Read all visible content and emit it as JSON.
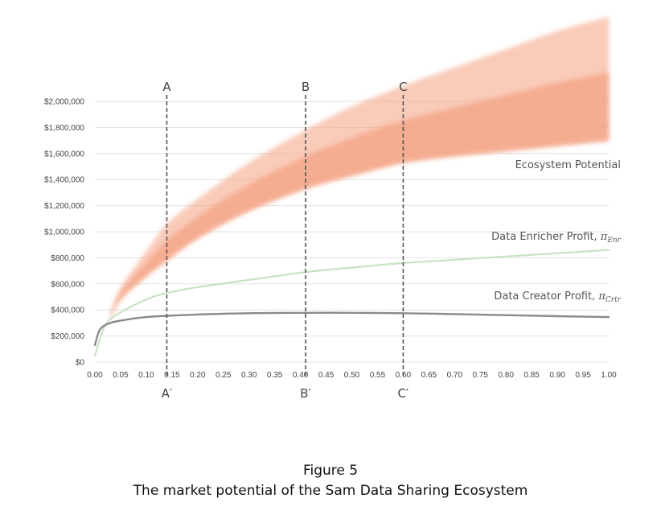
{
  "caption": {
    "figure_number": "Figure 5",
    "figure_title": "The market potential  of the Sam Data Sharing Ecosystem"
  },
  "colors": {
    "ecosystem_band": "#f4a080",
    "enricher_line": "#c8e2c4",
    "creator_line": "#8a8a8a",
    "grid": "#e2e2e2",
    "marker_line": "#555555"
  },
  "chart_data": {
    "type": "line",
    "xlim": [
      0,
      1
    ],
    "ylim": [
      0,
      2000000
    ],
    "grid": true,
    "x_ticks": [
      "0.00",
      "0.05",
      "0.10",
      "0.15",
      "0.20",
      "0.25",
      "0.30",
      "0.35",
      "0.40",
      "0.45",
      "0.50",
      "0.55",
      "0.60",
      "0.65",
      "0.70",
      "0.75",
      "0.80",
      "0.85",
      "0.90",
      "0.95",
      "1.00"
    ],
    "y_ticks": [
      {
        "value": 0,
        "label": "$0"
      },
      {
        "value": 200000,
        "label": "$200,000"
      },
      {
        "value": 400000,
        "label": "$400,000"
      },
      {
        "value": 600000,
        "label": "$600,000"
      },
      {
        "value": 800000,
        "label": "$800,000"
      },
      {
        "value": 1000000,
        "label": "$1,000,000"
      },
      {
        "value": 1200000,
        "label": "$1,200,000"
      },
      {
        "value": 1400000,
        "label": "$1,400,000"
      },
      {
        "value": 1600000,
        "label": "$1,600,000"
      },
      {
        "value": 1800000,
        "label": "$1,800,000"
      },
      {
        "value": 2000000,
        "label": "$2,000,000"
      }
    ],
    "markers": [
      {
        "x": 0.14,
        "top_label": "A",
        "bottom_label": "A′"
      },
      {
        "x": 0.41,
        "top_label": "B",
        "bottom_label": "B′"
      },
      {
        "x": 0.6,
        "top_label": "C",
        "bottom_label": "C′"
      }
    ],
    "series": [
      {
        "name": "Ecosystem Potential",
        "kind": "band",
        "x": [
          0.03,
          0.05,
          0.1,
          0.14,
          0.2,
          0.3,
          0.41,
          0.5,
          0.6,
          0.7,
          0.8,
          0.9,
          1.0
        ],
        "lower": [
          330000,
          480000,
          660000,
          780000,
          950000,
          1160000,
          1330000,
          1430000,
          1530000,
          1580000,
          1620000,
          1660000,
          1700000
        ],
        "upper": [
          370000,
          570000,
          850000,
          1060000,
          1250000,
          1530000,
          1780000,
          1960000,
          2120000,
          2260000,
          2400000,
          2540000,
          2650000
        ]
      },
      {
        "name": "Data Enricher Profit, ",
        "symbol": "π",
        "subscript": "Enr",
        "kind": "line",
        "x": [
          0.0,
          0.02,
          0.05,
          0.1,
          0.14,
          0.2,
          0.3,
          0.41,
          0.5,
          0.6,
          0.7,
          0.8,
          0.9,
          1.0
        ],
        "y": [
          50000,
          280000,
          380000,
          480000,
          530000,
          575000,
          630000,
          690000,
          725000,
          760000,
          785000,
          810000,
          835000,
          860000
        ]
      },
      {
        "name": "Data Creator Profit, ",
        "symbol": "π",
        "subscript": "Crtr",
        "kind": "line",
        "x": [
          0.0,
          0.01,
          0.03,
          0.06,
          0.1,
          0.14,
          0.2,
          0.3,
          0.41,
          0.5,
          0.6,
          0.7,
          0.8,
          0.9,
          1.0
        ],
        "y": [
          130000,
          250000,
          300000,
          325000,
          345000,
          355000,
          365000,
          375000,
          378000,
          378000,
          375000,
          368000,
          360000,
          352000,
          345000
        ]
      }
    ]
  }
}
